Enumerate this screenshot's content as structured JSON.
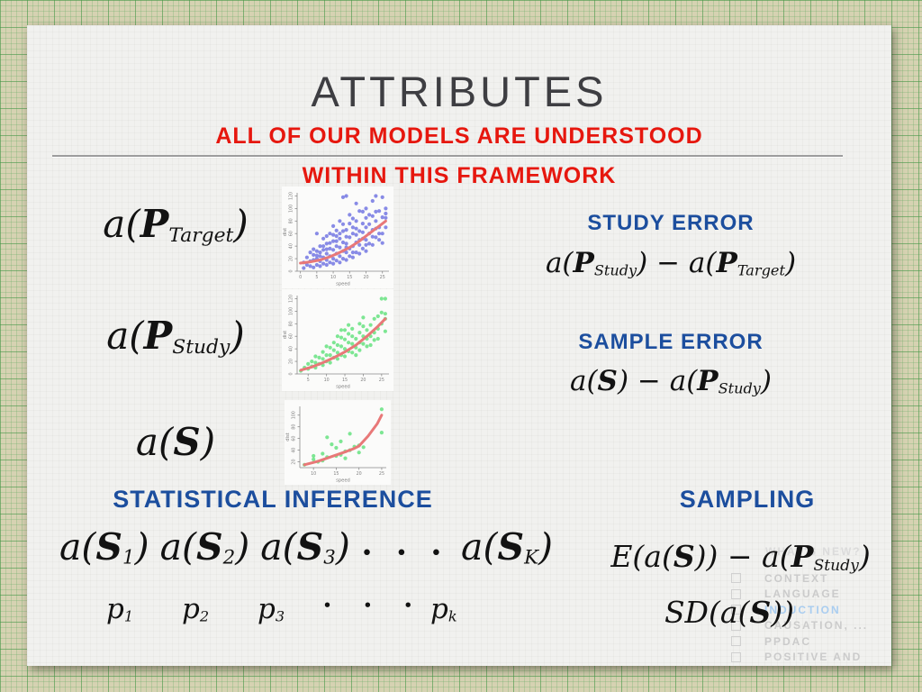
{
  "slide": {
    "title": "ATTRIBUTES",
    "subtitle_line1": "ALL OF OUR MODELS ARE UNDERSTOOD",
    "subtitle_line2": "WITHIN THIS FRAMEWORK"
  },
  "colors": {
    "red_text": "#e6170e",
    "blue_text": "#1c4e9e",
    "math_text": "#121212",
    "point_blue": "#7b7ee3",
    "point_green": "#6fe387",
    "curve_red": "#e87878",
    "ghost_gray": "#cbcbcb",
    "ghost_highlight_blue": "#a9cdf0"
  },
  "left_column": {
    "target_label": {
      "pre": "a(",
      "cal": "P",
      "sub": "Target",
      "post": ")"
    },
    "study_label": {
      "pre": "a(",
      "cal": "P",
      "sub": "Study",
      "post": ")"
    },
    "sample_label": {
      "pre": "a(",
      "cal": "S",
      "post": ")"
    }
  },
  "right_column": {
    "study_error_title": "STUDY ERROR",
    "study_error_formula": {
      "a1": "a(",
      "c1": "P",
      "s1": "Study",
      "mid": ") − a(",
      "c2": "P",
      "s2": "Target",
      "post": ")"
    },
    "sample_error_title": "SAMPLE ERROR",
    "sample_error_formula": {
      "a1": "a(",
      "c1": "S",
      "mid": ") − a(",
      "c2": "P",
      "s2": "Study",
      "post": ")"
    }
  },
  "bottom": {
    "inference_title": "STATISTICAL INFERENCE",
    "sampling_title": "SAMPLING",
    "terms": [
      {
        "pre": "a(",
        "cal": "S",
        "sub": "1",
        "post": ")"
      },
      {
        "pre": "a(",
        "cal": "S",
        "sub": "2",
        "post": ")"
      },
      {
        "pre": "a(",
        "cal": "S",
        "sub": "3",
        "post": ")"
      },
      {
        "pre": "a(",
        "cal": "S",
        "sub": "K",
        "post": ")"
      }
    ],
    "terms_dots": "• • •",
    "p_terms": [
      {
        "v": "p",
        "sub": "1"
      },
      {
        "v": "p",
        "sub": "2"
      },
      {
        "v": "p",
        "sub": "3"
      },
      {
        "v": "p",
        "sub": "k"
      }
    ],
    "p_dots": "• • •",
    "expectation_formula": {
      "pre": "E(a(",
      "c1": "S",
      "mid": ")) − a(",
      "c2": "P",
      "s2": "Study",
      "post": ")"
    },
    "sd_formula": {
      "pre": "SD(a(",
      "c1": "S",
      "post": "))"
    }
  },
  "ghost": {
    "title": "WHAT'S NEW?",
    "items": [
      {
        "label": "CONTEXT",
        "highlight": false
      },
      {
        "label": "LANGUAGE",
        "highlight": false
      },
      {
        "label": "INDUCTION",
        "highlight": true
      },
      {
        "label": "CAUSATION, ...",
        "highlight": false
      },
      {
        "label": "PPDAC",
        "highlight": false
      },
      {
        "label": "POSITIVE AND",
        "highlight": false
      }
    ]
  },
  "chart_data": [
    {
      "type": "scatter",
      "name": "target-population",
      "xlabel": "speed",
      "ylabel": "dist",
      "xlim": [
        -1,
        27
      ],
      "ylim": [
        0,
        125
      ],
      "xticks": [
        0,
        5,
        10,
        15,
        20,
        25
      ],
      "yticks": [
        0,
        20,
        40,
        60,
        80,
        100,
        120
      ],
      "point_color": "#7b7ee3",
      "curve_color": "#e87878",
      "curve": [
        [
          0,
          13
        ],
        [
          3,
          15
        ],
        [
          6,
          18
        ],
        [
          9,
          23
        ],
        [
          12,
          30
        ],
        [
          15,
          38
        ],
        [
          18,
          48
        ],
        [
          21,
          60
        ],
        [
          24,
          72
        ],
        [
          26,
          80
        ]
      ],
      "points": [
        [
          1,
          5
        ],
        [
          1,
          14
        ],
        [
          2,
          10
        ],
        [
          2,
          22
        ],
        [
          3,
          8
        ],
        [
          3,
          16
        ],
        [
          3,
          30
        ],
        [
          4,
          6
        ],
        [
          4,
          18
        ],
        [
          4,
          26
        ],
        [
          5,
          10
        ],
        [
          5,
          20
        ],
        [
          5,
          32
        ],
        [
          5,
          60
        ],
        [
          6,
          8
        ],
        [
          6,
          16
        ],
        [
          6,
          24
        ],
        [
          6,
          40
        ],
        [
          7,
          12
        ],
        [
          7,
          22
        ],
        [
          7,
          34
        ],
        [
          7,
          52
        ],
        [
          8,
          10
        ],
        [
          8,
          18
        ],
        [
          8,
          28
        ],
        [
          8,
          44
        ],
        [
          9,
          14
        ],
        [
          9,
          24
        ],
        [
          9,
          36
        ],
        [
          9,
          60
        ],
        [
          10,
          12
        ],
        [
          10,
          20
        ],
        [
          10,
          34
        ],
        [
          10,
          48
        ],
        [
          10,
          72
        ],
        [
          11,
          17
        ],
        [
          11,
          28
        ],
        [
          11,
          40
        ],
        [
          11,
          56
        ],
        [
          12,
          14
        ],
        [
          12,
          24
        ],
        [
          12,
          38
        ],
        [
          12,
          52
        ],
        [
          12,
          80
        ],
        [
          13,
          20
        ],
        [
          13,
          32
        ],
        [
          13,
          46
        ],
        [
          13,
          64
        ],
        [
          13,
          118
        ],
        [
          14,
          18
        ],
        [
          14,
          30
        ],
        [
          14,
          44
        ],
        [
          14,
          66
        ],
        [
          14,
          120
        ],
        [
          15,
          24
        ],
        [
          15,
          36
        ],
        [
          15,
          54
        ],
        [
          15,
          76
        ],
        [
          16,
          22
        ],
        [
          16,
          40
        ],
        [
          16,
          60
        ],
        [
          16,
          84
        ],
        [
          17,
          30
        ],
        [
          17,
          46
        ],
        [
          17,
          68
        ],
        [
          17,
          108
        ],
        [
          18,
          28
        ],
        [
          18,
          42
        ],
        [
          18,
          64
        ],
        [
          18,
          96
        ],
        [
          19,
          36
        ],
        [
          19,
          52
        ],
        [
          19,
          76
        ],
        [
          20,
          32
        ],
        [
          20,
          50
        ],
        [
          20,
          70
        ],
        [
          20,
          100
        ],
        [
          21,
          44
        ],
        [
          21,
          60
        ],
        [
          21,
          90
        ],
        [
          22,
          42
        ],
        [
          22,
          66
        ],
        [
          22,
          112
        ],
        [
          23,
          54
        ],
        [
          23,
          80
        ],
        [
          23,
          120
        ],
        [
          24,
          50
        ],
        [
          24,
          70
        ],
        [
          24,
          96
        ],
        [
          25,
          60
        ],
        [
          25,
          86
        ],
        [
          25,
          118
        ],
        [
          26,
          70
        ],
        [
          26,
          100
        ],
        [
          12,
          60
        ],
        [
          8,
          56
        ],
        [
          16,
          30
        ],
        [
          19,
          95
        ],
        [
          21,
          75
        ],
        [
          6,
          30
        ],
        [
          9,
          45
        ],
        [
          11,
          65
        ],
        [
          14,
          55
        ],
        [
          17,
          80
        ],
        [
          22,
          88
        ],
        [
          24,
          60
        ],
        [
          7,
          40
        ],
        [
          4,
          35
        ],
        [
          15,
          90
        ],
        [
          18,
          50
        ],
        [
          20,
          85
        ],
        [
          23,
          95
        ],
        [
          25,
          45
        ],
        [
          10,
          58
        ],
        [
          13,
          75
        ],
        [
          16,
          70
        ],
        [
          19,
          62
        ],
        [
          22,
          55
        ],
        [
          26,
          85
        ],
        [
          5,
          25
        ],
        [
          8,
          35
        ],
        [
          11,
          48
        ],
        [
          14,
          38
        ],
        [
          17,
          58
        ],
        [
          20,
          42
        ],
        [
          23,
          68
        ],
        [
          26,
          92
        ]
      ]
    },
    {
      "type": "scatter",
      "name": "study-population",
      "xlabel": "speed",
      "ylabel": "dist",
      "xlim": [
        2,
        27
      ],
      "ylim": [
        0,
        125
      ],
      "xticks": [
        5,
        10,
        15,
        20,
        25
      ],
      "yticks": [
        0,
        20,
        40,
        60,
        80,
        100,
        120
      ],
      "point_color": "#6fe387",
      "curve_color": "#e87878",
      "curve": [
        [
          3,
          6
        ],
        [
          6,
          11
        ],
        [
          9,
          18
        ],
        [
          12,
          26
        ],
        [
          15,
          35
        ],
        [
          18,
          46
        ],
        [
          21,
          60
        ],
        [
          24,
          76
        ],
        [
          26,
          88
        ]
      ],
      "points": [
        [
          3,
          5
        ],
        [
          4,
          10
        ],
        [
          5,
          8
        ],
        [
          5,
          16
        ],
        [
          6,
          12
        ],
        [
          6,
          20
        ],
        [
          7,
          10
        ],
        [
          7,
          18
        ],
        [
          8,
          16
        ],
        [
          8,
          26
        ],
        [
          9,
          14
        ],
        [
          9,
          24
        ],
        [
          10,
          20
        ],
        [
          10,
          30
        ],
        [
          10,
          44
        ],
        [
          11,
          18
        ],
        [
          11,
          30
        ],
        [
          12,
          26
        ],
        [
          12,
          38
        ],
        [
          13,
          24
        ],
        [
          13,
          34
        ],
        [
          13,
          46
        ],
        [
          14,
          30
        ],
        [
          14,
          44
        ],
        [
          14,
          58
        ],
        [
          15,
          28
        ],
        [
          15,
          40
        ],
        [
          15,
          55
        ],
        [
          15,
          70
        ],
        [
          16,
          36
        ],
        [
          16,
          50
        ],
        [
          16,
          64
        ],
        [
          17,
          34
        ],
        [
          17,
          48
        ],
        [
          17,
          72
        ],
        [
          18,
          30
        ],
        [
          18,
          42
        ],
        [
          18,
          56
        ],
        [
          19,
          38
        ],
        [
          19,
          50
        ],
        [
          19,
          66
        ],
        [
          20,
          48
        ],
        [
          20,
          60
        ],
        [
          20,
          76
        ],
        [
          21,
          44
        ],
        [
          21,
          56
        ],
        [
          21,
          70
        ],
        [
          22,
          60
        ],
        [
          22,
          78
        ],
        [
          23,
          54
        ],
        [
          23,
          66
        ],
        [
          23,
          88
        ],
        [
          24,
          72
        ],
        [
          24,
          92
        ],
        [
          25,
          80
        ],
        [
          25,
          98
        ],
        [
          25,
          120
        ],
        [
          26,
          68
        ],
        [
          26,
          88
        ],
        [
          26,
          96
        ],
        [
          13,
          60
        ],
        [
          16,
          78
        ],
        [
          19,
          80
        ],
        [
          22,
          46
        ],
        [
          12,
          50
        ],
        [
          9,
          35
        ],
        [
          7,
          28
        ],
        [
          11,
          42
        ],
        [
          14,
          70
        ],
        [
          17,
          60
        ],
        [
          20,
          90
        ],
        [
          24,
          56
        ],
        [
          26,
          120
        ]
      ]
    },
    {
      "type": "scatter",
      "name": "sample",
      "xlabel": "speed",
      "ylabel": "dist",
      "xlim": [
        7,
        26
      ],
      "ylim": [
        10,
        115
      ],
      "xticks": [
        10,
        15,
        20,
        25
      ],
      "yticks": [
        20,
        40,
        60,
        80,
        100
      ],
      "point_color": "#6fe387",
      "curve_color": "#e87878",
      "curve": [
        [
          8,
          15
        ],
        [
          11,
          21
        ],
        [
          14,
          29
        ],
        [
          17,
          37
        ],
        [
          19,
          43
        ],
        [
          20,
          47
        ],
        [
          22,
          64
        ],
        [
          24,
          85
        ],
        [
          25,
          100
        ]
      ],
      "points": [
        [
          8,
          15
        ],
        [
          10,
          24
        ],
        [
          10,
          30
        ],
        [
          11,
          20
        ],
        [
          12,
          34
        ],
        [
          13,
          28
        ],
        [
          13,
          62
        ],
        [
          14,
          50
        ],
        [
          15,
          30
        ],
        [
          15,
          44
        ],
        [
          16,
          55
        ],
        [
          17,
          26
        ],
        [
          17,
          38
        ],
        [
          18,
          68
        ],
        [
          19,
          46
        ],
        [
          20,
          36
        ],
        [
          20,
          48
        ],
        [
          21,
          45
        ],
        [
          25,
          110
        ],
        [
          25,
          70
        ],
        [
          12,
          22
        ],
        [
          16,
          32
        ],
        [
          18,
          40
        ]
      ]
    }
  ]
}
